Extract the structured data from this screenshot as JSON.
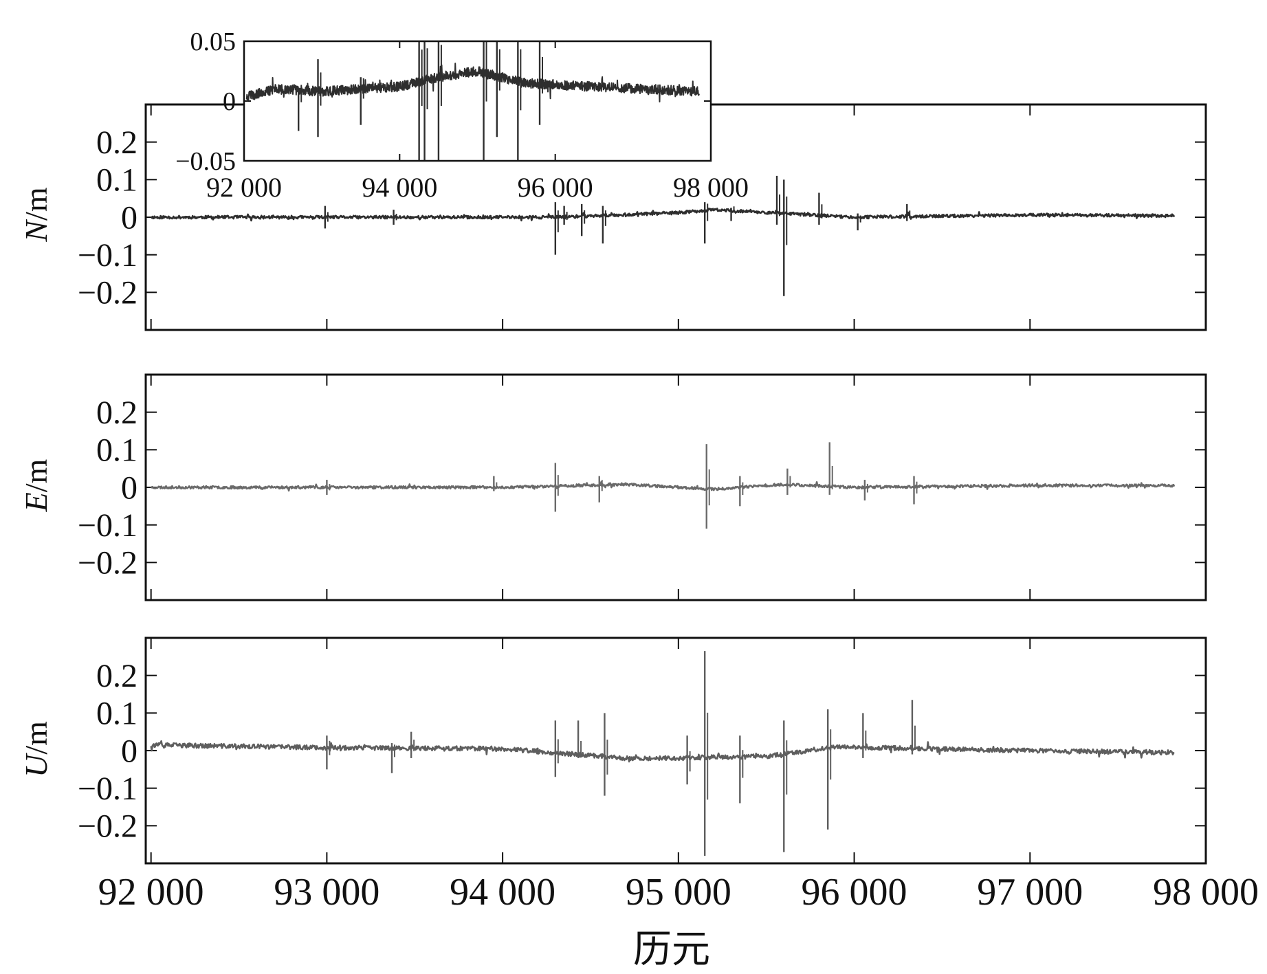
{
  "figure": {
    "xlabel": "历元"
  },
  "chart_data": [
    {
      "id": "N",
      "type": "line",
      "ylabel_var": "N",
      "ylabel_unit": "/m",
      "xlim": [
        91970,
        98000
      ],
      "ylim": [
        -0.3,
        0.3
      ],
      "xticks": [
        92000,
        93000,
        94000,
        95000,
        96000,
        97000,
        98000
      ],
      "yticks": [
        -0.2,
        -0.1,
        0,
        0.1,
        0.2
      ],
      "ytick_labels": [
        "−0.2",
        "−0.1",
        "0",
        "0.1",
        "0.2"
      ],
      "xtick_labels": [],
      "color": "#2e2e2e",
      "x_end": 97820,
      "baseline": [
        [
          92000,
          0
        ],
        [
          94300,
          0.0
        ],
        [
          95000,
          0.012
        ],
        [
          95200,
          0.02
        ],
        [
          95600,
          0.01
        ],
        [
          96000,
          0
        ],
        [
          97000,
          0.006
        ],
        [
          97820,
          0.004
        ]
      ],
      "noise": 0.004,
      "spikes": [
        [
          92990,
          0.03,
          -0.03
        ],
        [
          93380,
          0.02,
          -0.02
        ],
        [
          94300,
          0.04,
          -0.1
        ],
        [
          94350,
          0.03,
          -0.02
        ],
        [
          94450,
          0.035,
          -0.05
        ],
        [
          94570,
          0.03,
          -0.07
        ],
        [
          95150,
          0.04,
          -0.07
        ],
        [
          95300,
          0.025,
          -0.01
        ],
        [
          95560,
          0.11,
          -0.02
        ],
        [
          95600,
          0.1,
          -0.21
        ],
        [
          95800,
          0.065,
          -0.02
        ],
        [
          96020,
          0.01,
          -0.035
        ],
        [
          96300,
          0.035,
          -0.01
        ]
      ]
    },
    {
      "id": "E",
      "type": "line",
      "ylabel_var": "E",
      "ylabel_unit": "/m",
      "xlim": [
        91970,
        98000
      ],
      "ylim": [
        -0.3,
        0.3
      ],
      "xticks": [
        92000,
        93000,
        94000,
        95000,
        96000,
        97000,
        98000
      ],
      "yticks": [
        -0.2,
        -0.1,
        0,
        0.1,
        0.2
      ],
      "ytick_labels": [
        "−0.2",
        "−0.1",
        "0",
        "0.1",
        "0.2"
      ],
      "xtick_labels": [],
      "color": "#6a6a6a",
      "x_end": 97820,
      "baseline": [
        [
          92000,
          0
        ],
        [
          94000,
          0
        ],
        [
          94700,
          0.008
        ],
        [
          95200,
          -0.005
        ],
        [
          95600,
          0.008
        ],
        [
          96000,
          0
        ],
        [
          97000,
          0.005
        ],
        [
          97820,
          0.005
        ]
      ],
      "noise": 0.0035,
      "spikes": [
        [
          93000,
          0.02,
          -0.02
        ],
        [
          93950,
          0.03,
          -0.01
        ],
        [
          94300,
          0.065,
          -0.065
        ],
        [
          94550,
          0.03,
          -0.04
        ],
        [
          95160,
          0.115,
          -0.11
        ],
        [
          95350,
          0.03,
          -0.05
        ],
        [
          95620,
          0.05,
          -0.02
        ],
        [
          95860,
          0.12,
          -0.02
        ],
        [
          96060,
          0.02,
          -0.035
        ],
        [
          96340,
          0.03,
          -0.045
        ]
      ]
    },
    {
      "id": "U",
      "type": "line",
      "ylabel_var": "U",
      "ylabel_unit": "/m",
      "xlim": [
        91970,
        98000
      ],
      "ylim": [
        -0.3,
        0.3
      ],
      "xticks": [
        92000,
        93000,
        94000,
        95000,
        96000,
        97000,
        98000
      ],
      "yticks": [
        -0.2,
        -0.1,
        0,
        0.1,
        0.2
      ],
      "ytick_labels": [
        "−0.2",
        "−0.1",
        "0",
        "0.1",
        "0.2"
      ],
      "xtick_labels": [
        "92 000",
        "93 000",
        "94 000",
        "95 000",
        "96 000",
        "97 000",
        "98 000"
      ],
      "color": "#5e5e5e",
      "x_end": 97820,
      "baseline": [
        [
          92000,
          0.015
        ],
        [
          93000,
          0.008
        ],
        [
          94000,
          0.005
        ],
        [
          94700,
          -0.02
        ],
        [
          95000,
          -0.02
        ],
        [
          95500,
          -0.015
        ],
        [
          95900,
          0.01
        ],
        [
          96400,
          0.005
        ],
        [
          97000,
          0
        ],
        [
          97820,
          -0.005
        ]
      ],
      "noise": 0.006,
      "spikes": [
        [
          93000,
          0.04,
          -0.05
        ],
        [
          93370,
          0.02,
          -0.06
        ],
        [
          93480,
          0.05,
          -0.02
        ],
        [
          94300,
          0.08,
          -0.07
        ],
        [
          94430,
          0.08,
          -0.02
        ],
        [
          94580,
          0.1,
          -0.12
        ],
        [
          95050,
          0.04,
          -0.09
        ],
        [
          95150,
          0.265,
          -0.28
        ],
        [
          95350,
          0.04,
          -0.14
        ],
        [
          95600,
          0.08,
          -0.27
        ],
        [
          95850,
          0.11,
          -0.21
        ],
        [
          96050,
          0.1,
          -0.02
        ],
        [
          96330,
          0.135,
          -0.01
        ]
      ]
    },
    {
      "id": "N-inset",
      "type": "line",
      "xlim": [
        92000,
        98000
      ],
      "ylim": [
        -0.05,
        0.05
      ],
      "xticks": [
        92000,
        94000,
        96000,
        98000
      ],
      "xtick_labels": [
        "92 000",
        "94 000",
        "96 000",
        "98 000"
      ],
      "yticks": [
        -0.05,
        0,
        0.05
      ],
      "ytick_labels": [
        "−0.05",
        "0",
        "0.05"
      ],
      "color": "#2e2e2e",
      "x_end": 97850,
      "baseline": [
        [
          92000,
          0.003
        ],
        [
          92400,
          0.01
        ],
        [
          93000,
          0.008
        ],
        [
          94000,
          0.012
        ],
        [
          94500,
          0.02
        ],
        [
          95000,
          0.025
        ],
        [
          95600,
          0.015
        ],
        [
          96500,
          0.012
        ],
        [
          97850,
          0.008
        ]
      ],
      "noise": 0.004,
      "spikes": [
        [
          92700,
          0.01,
          -0.025
        ],
        [
          92950,
          0.035,
          -0.03
        ],
        [
          93500,
          0.02,
          -0.02
        ],
        [
          94250,
          0.06,
          -0.05
        ],
        [
          94320,
          0.06,
          -0.06
        ],
        [
          94500,
          0.06,
          -0.06
        ],
        [
          95080,
          0.06,
          -0.06
        ],
        [
          95250,
          0.05,
          -0.03
        ],
        [
          95520,
          0.06,
          -0.06
        ],
        [
          95800,
          0.05,
          -0.02
        ]
      ]
    }
  ]
}
